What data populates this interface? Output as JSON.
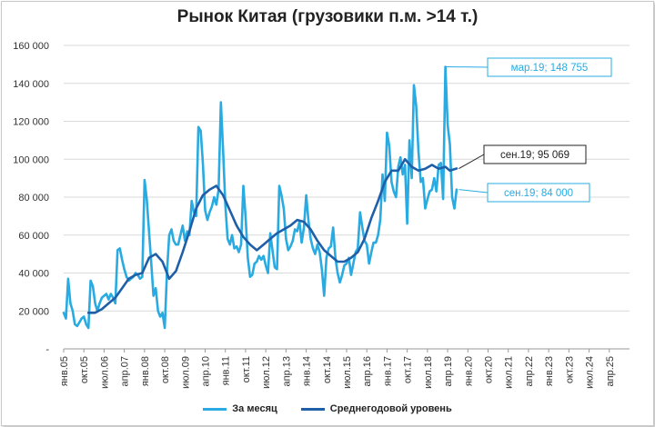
{
  "chart_data": {
    "type": "line",
    "title": "Рынок Китая (грузовики п.м. >14 т.)",
    "xlabel": "",
    "ylabel": "",
    "ylim": [
      0,
      160000
    ],
    "y_ticks": [
      "-",
      "20 000",
      "40 000",
      "60 000",
      "80 000",
      "100 000",
      "120 000",
      "140 000",
      "160 000"
    ],
    "x_ticks": [
      "янв.05",
      "окт.05",
      "июл.06",
      "апр.07",
      "янв.08",
      "окт.08",
      "июл.09",
      "апр.10",
      "янв.11",
      "окт.11",
      "июл.12",
      "апр.13",
      "янв.14",
      "окт.14",
      "июл.15",
      "апр.16",
      "янв.17",
      "окт.17",
      "июл.18",
      "апр.19",
      "янв.20",
      "окт.20",
      "июл.21",
      "апр.22",
      "янв.23",
      "окт.23",
      "июл.24",
      "апр.25"
    ],
    "x_start": "2005-01",
    "x_end_month_index": 252,
    "grid": true,
    "legend_position": "bottom",
    "series": [
      {
        "name": "За месяц",
        "color": "#29abe2",
        "points": [
          [
            0,
            19000
          ],
          [
            1,
            16000
          ],
          [
            2,
            37000
          ],
          [
            3,
            24000
          ],
          [
            4,
            20000
          ],
          [
            5,
            13000
          ],
          [
            6,
            12000
          ],
          [
            7,
            14000
          ],
          [
            8,
            16000
          ],
          [
            9,
            17000
          ],
          [
            10,
            13000
          ],
          [
            11,
            11000
          ],
          [
            12,
            36000
          ],
          [
            13,
            33000
          ],
          [
            14,
            24000
          ],
          [
            15,
            20000
          ],
          [
            16,
            24000
          ],
          [
            17,
            27000
          ],
          [
            18,
            28000
          ],
          [
            19,
            29000
          ],
          [
            20,
            26000
          ],
          [
            21,
            29000
          ],
          [
            22,
            27000
          ],
          [
            23,
            24000
          ],
          [
            24,
            52000
          ],
          [
            25,
            53000
          ],
          [
            26,
            47000
          ],
          [
            27,
            42000
          ],
          [
            28,
            38000
          ],
          [
            29,
            36000
          ],
          [
            30,
            37000
          ],
          [
            31,
            38000
          ],
          [
            32,
            40000
          ],
          [
            33,
            39000
          ],
          [
            34,
            37000
          ],
          [
            35,
            38000
          ],
          [
            36,
            89000
          ],
          [
            37,
            79000
          ],
          [
            38,
            62000
          ],
          [
            39,
            45000
          ],
          [
            40,
            28000
          ],
          [
            41,
            32000
          ],
          [
            42,
            20000
          ],
          [
            43,
            17000
          ],
          [
            44,
            19000
          ],
          [
            45,
            11000
          ],
          [
            46,
            40000
          ],
          [
            47,
            60000
          ],
          [
            48,
            63000
          ],
          [
            49,
            57000
          ],
          [
            50,
            55000
          ],
          [
            51,
            55000
          ],
          [
            52,
            60000
          ],
          [
            53,
            65000
          ],
          [
            54,
            57000
          ],
          [
            55,
            62000
          ],
          [
            56,
            60000
          ],
          [
            57,
            78000
          ],
          [
            58,
            72000
          ],
          [
            59,
            70000
          ],
          [
            60,
            117000
          ],
          [
            61,
            115000
          ],
          [
            62,
            98000
          ],
          [
            63,
            73000
          ],
          [
            64,
            68000
          ],
          [
            65,
            72000
          ],
          [
            66,
            75000
          ],
          [
            67,
            80000
          ],
          [
            68,
            76000
          ],
          [
            69,
            84000
          ],
          [
            70,
            130000
          ],
          [
            71,
            105000
          ],
          [
            72,
            76000
          ],
          [
            73,
            58000
          ],
          [
            74,
            55000
          ],
          [
            75,
            60000
          ],
          [
            76,
            53000
          ],
          [
            77,
            54000
          ],
          [
            78,
            51000
          ],
          [
            79,
            55000
          ],
          [
            80,
            86000
          ],
          [
            81,
            70000
          ],
          [
            82,
            48000
          ],
          [
            83,
            38000
          ],
          [
            84,
            39000
          ],
          [
            85,
            45000
          ],
          [
            86,
            46000
          ],
          [
            87,
            49000
          ],
          [
            88,
            47000
          ],
          [
            89,
            49000
          ],
          [
            90,
            44000
          ],
          [
            91,
            40000
          ],
          [
            92,
            61000
          ],
          [
            93,
            52000
          ],
          [
            94,
            43000
          ],
          [
            95,
            42000
          ],
          [
            96,
            86000
          ],
          [
            97,
            81000
          ],
          [
            98,
            74000
          ],
          [
            99,
            58000
          ],
          [
            100,
            52000
          ],
          [
            101,
            54000
          ],
          [
            102,
            57000
          ],
          [
            103,
            63000
          ],
          [
            104,
            62000
          ],
          [
            105,
            67000
          ],
          [
            106,
            56000
          ],
          [
            107,
            64000
          ],
          [
            108,
            81000
          ],
          [
            109,
            68000
          ],
          [
            110,
            58000
          ],
          [
            111,
            53000
          ],
          [
            112,
            50000
          ],
          [
            113,
            55000
          ],
          [
            114,
            51000
          ],
          [
            115,
            42000
          ],
          [
            116,
            28000
          ],
          [
            117,
            48000
          ],
          [
            118,
            53000
          ],
          [
            119,
            54000
          ],
          [
            120,
            64000
          ],
          [
            121,
            48000
          ],
          [
            122,
            40000
          ],
          [
            123,
            35000
          ],
          [
            124,
            39000
          ],
          [
            125,
            44000
          ],
          [
            126,
            45000
          ],
          [
            127,
            48000
          ],
          [
            128,
            39000
          ],
          [
            129,
            45000
          ],
          [
            130,
            51000
          ],
          [
            131,
            53000
          ],
          [
            132,
            72000
          ],
          [
            133,
            64000
          ],
          [
            134,
            57000
          ],
          [
            135,
            55000
          ],
          [
            136,
            45000
          ],
          [
            137,
            51000
          ],
          [
            138,
            56000
          ],
          [
            139,
            56000
          ],
          [
            140,
            60000
          ],
          [
            141,
            68000
          ],
          [
            142,
            92000
          ],
          [
            143,
            78000
          ],
          [
            144,
            114000
          ],
          [
            145,
            107000
          ],
          [
            146,
            88000
          ],
          [
            147,
            83000
          ],
          [
            148,
            80000
          ],
          [
            149,
            96000
          ],
          [
            150,
            101000
          ],
          [
            151,
            92000
          ],
          [
            152,
            97000
          ],
          [
            153,
            66000
          ],
          [
            154,
            110000
          ],
          [
            155,
            90000
          ],
          [
            156,
            139000
          ],
          [
            157,
            128000
          ],
          [
            158,
            104000
          ],
          [
            159,
            88000
          ],
          [
            160,
            90000
          ],
          [
            161,
            74000
          ],
          [
            162,
            79000
          ],
          [
            163,
            83000
          ],
          [
            164,
            84000
          ],
          [
            165,
            90000
          ],
          [
            166,
            83000
          ],
          [
            167,
            97000
          ],
          [
            168,
            98000
          ],
          [
            169,
            79000
          ],
          [
            170,
            148755
          ],
          [
            171,
            118000
          ],
          [
            172,
            108000
          ],
          [
            173,
            80000
          ],
          [
            174,
            74000
          ],
          [
            175,
            84000
          ]
        ]
      },
      {
        "name": "Среднегодовой уровень",
        "color": "#1f5fa8",
        "points": [
          [
            11,
            19000
          ],
          [
            14,
            19000
          ],
          [
            17,
            21000
          ],
          [
            20,
            24000
          ],
          [
            23,
            27000
          ],
          [
            26,
            32000
          ],
          [
            29,
            37000
          ],
          [
            32,
            39000
          ],
          [
            35,
            40000
          ],
          [
            38,
            48000
          ],
          [
            41,
            50000
          ],
          [
            44,
            46000
          ],
          [
            47,
            37000
          ],
          [
            50,
            41000
          ],
          [
            53,
            51000
          ],
          [
            56,
            62000
          ],
          [
            59,
            74000
          ],
          [
            62,
            81000
          ],
          [
            65,
            84000
          ],
          [
            68,
            86000
          ],
          [
            71,
            81000
          ],
          [
            74,
            73000
          ],
          [
            77,
            65000
          ],
          [
            80,
            59000
          ],
          [
            83,
            55000
          ],
          [
            86,
            52000
          ],
          [
            89,
            55000
          ],
          [
            92,
            58000
          ],
          [
            95,
            61000
          ],
          [
            98,
            63000
          ],
          [
            101,
            65000
          ],
          [
            104,
            68000
          ],
          [
            107,
            67000
          ],
          [
            110,
            63000
          ],
          [
            113,
            57000
          ],
          [
            116,
            52000
          ],
          [
            119,
            49000
          ],
          [
            122,
            46000
          ],
          [
            125,
            46000
          ],
          [
            128,
            48000
          ],
          [
            131,
            51000
          ],
          [
            134,
            58000
          ],
          [
            137,
            69000
          ],
          [
            140,
            78000
          ],
          [
            143,
            88000
          ],
          [
            146,
            94000
          ],
          [
            149,
            94000
          ],
          [
            152,
            100000
          ],
          [
            155,
            96000
          ],
          [
            158,
            94000
          ],
          [
            161,
            95000
          ],
          [
            164,
            97000
          ],
          [
            167,
            95000
          ],
          [
            170,
            96000
          ],
          [
            172,
            94000
          ],
          [
            175,
            95069
          ]
        ]
      }
    ],
    "annotations": [
      {
        "label": "мар.19;",
        "value": "148 755",
        "month_index": 170,
        "y": 148755,
        "color": "#29abe2"
      },
      {
        "label": "сен.19;",
        "value": "95 069",
        "month_index": 176,
        "y": 95069,
        "color": "#222222"
      },
      {
        "label": "сен.19;",
        "value": "84 000",
        "month_index": 176,
        "y": 84000,
        "color": "#29abe2"
      }
    ]
  }
}
